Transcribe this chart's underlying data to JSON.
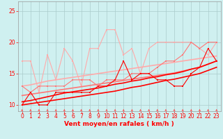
{
  "bg_color": "#cff0f0",
  "grid_color": "#aacccc",
  "xlabel": "Vent moyen/en rafales ( km/h )",
  "xlim": [
    -0.5,
    23.5
  ],
  "ylim": [
    9.0,
    26.5
  ],
  "yticks": [
    10,
    15,
    20,
    25
  ],
  "xticks": [
    0,
    1,
    2,
    3,
    4,
    5,
    6,
    7,
    8,
    9,
    10,
    11,
    12,
    13,
    14,
    15,
    16,
    17,
    18,
    19,
    20,
    21,
    22,
    23
  ],
  "lines": [
    {
      "x": [
        0,
        1,
        2,
        3,
        4,
        5,
        6,
        7,
        8,
        9,
        10,
        11,
        12,
        13,
        14,
        15,
        16,
        17,
        18,
        19,
        20,
        21,
        22,
        23
      ],
      "y": [
        17,
        17,
        12,
        18,
        14,
        19,
        17,
        13,
        19,
        19,
        22,
        22,
        18,
        19,
        15,
        19,
        20,
        20,
        20,
        20,
        20,
        19,
        18,
        20
      ],
      "color": "#ffaaaa",
      "lw": 0.8,
      "marker": "s",
      "ms": 2.0,
      "zorder": 2
    },
    {
      "x": [
        0,
        1,
        2,
        3,
        4,
        5,
        6,
        7,
        8,
        9,
        10,
        11,
        12,
        13,
        14,
        15,
        16,
        17,
        18,
        19,
        20,
        21,
        22,
        23
      ],
      "y": [
        13.0,
        13.2,
        13.5,
        13.8,
        14.0,
        14.2,
        14.4,
        14.6,
        14.8,
        15.0,
        15.2,
        15.4,
        15.6,
        15.8,
        16.0,
        16.2,
        16.4,
        16.6,
        16.8,
        17.0,
        17.2,
        17.4,
        17.6,
        17.8
      ],
      "color": "#ffaaaa",
      "lw": 1.2,
      "marker": null,
      "ms": 0,
      "zorder": 2
    },
    {
      "x": [
        0,
        1,
        2,
        3,
        4,
        5,
        6,
        7,
        8,
        9,
        10,
        11,
        12,
        13,
        14,
        15,
        16,
        17,
        18,
        19,
        20,
        21,
        22,
        23
      ],
      "y": [
        13,
        12,
        13,
        13,
        13,
        13,
        14,
        14,
        14,
        13,
        14,
        14,
        14,
        15,
        15,
        15,
        16,
        17,
        17,
        18,
        20,
        19,
        20,
        20
      ],
      "color": "#ff7777",
      "lw": 0.8,
      "marker": "s",
      "ms": 2.0,
      "zorder": 3
    },
    {
      "x": [
        0,
        1,
        2,
        3,
        4,
        5,
        6,
        7,
        8,
        9,
        10,
        11,
        12,
        13,
        14,
        15,
        16,
        17,
        18,
        19,
        20,
        21,
        22,
        23
      ],
      "y": [
        11.5,
        11.7,
        11.9,
        12.1,
        12.3,
        12.5,
        12.7,
        12.9,
        13.1,
        13.3,
        13.5,
        13.7,
        13.9,
        14.1,
        14.3,
        14.5,
        14.7,
        14.9,
        15.1,
        15.4,
        15.7,
        16.0,
        16.5,
        17.0
      ],
      "color": "#ff7777",
      "lw": 1.2,
      "marker": null,
      "ms": 0,
      "zorder": 3
    },
    {
      "x": [
        0,
        1,
        2,
        3,
        4,
        5,
        6,
        7,
        8,
        9,
        10,
        11,
        12,
        13,
        14,
        15,
        16,
        17,
        18,
        19,
        20,
        21,
        22,
        23
      ],
      "y": [
        10,
        12,
        10,
        10,
        12,
        12,
        12,
        12,
        12,
        13,
        13,
        14,
        17,
        14,
        15,
        15,
        14,
        14,
        13,
        13,
        15,
        16,
        19,
        17
      ],
      "color": "#ff0000",
      "lw": 0.8,
      "marker": "s",
      "ms": 2.0,
      "zorder": 4
    },
    {
      "x": [
        0,
        1,
        2,
        3,
        4,
        5,
        6,
        7,
        8,
        9,
        10,
        11,
        12,
        13,
        14,
        15,
        16,
        17,
        18,
        19,
        20,
        21,
        22,
        23
      ],
      "y": [
        10.0,
        10.2,
        10.4,
        10.6,
        10.8,
        11.0,
        11.2,
        11.4,
        11.6,
        11.8,
        12.0,
        12.2,
        12.5,
        12.8,
        13.0,
        13.3,
        13.6,
        13.9,
        14.1,
        14.4,
        14.7,
        15.0,
        15.5,
        16.0
      ],
      "color": "#ff0000",
      "lw": 1.2,
      "marker": null,
      "ms": 0,
      "zorder": 4
    },
    {
      "x": [
        0,
        1,
        2,
        3,
        4,
        5,
        6,
        7,
        8,
        9,
        10,
        11,
        12,
        13,
        14,
        15,
        16,
        17,
        18,
        19,
        20,
        21,
        22,
        23
      ],
      "y": [
        10.5,
        10.7,
        11.0,
        11.3,
        11.6,
        11.9,
        12.1,
        12.3,
        12.5,
        12.7,
        13.0,
        13.3,
        13.5,
        13.8,
        14.0,
        14.3,
        14.5,
        14.8,
        15.0,
        15.3,
        15.7,
        16.0,
        16.5,
        17.0
      ],
      "color": "#ff0000",
      "lw": 1.2,
      "marker": null,
      "ms": 0,
      "zorder": 4
    }
  ],
  "xlabel_fontsize": 6.5,
  "tick_fontsize": 5.5,
  "tick_color": "#ff0000",
  "xlabel_color": "#ff0000",
  "arrow_color": "#ff4444"
}
